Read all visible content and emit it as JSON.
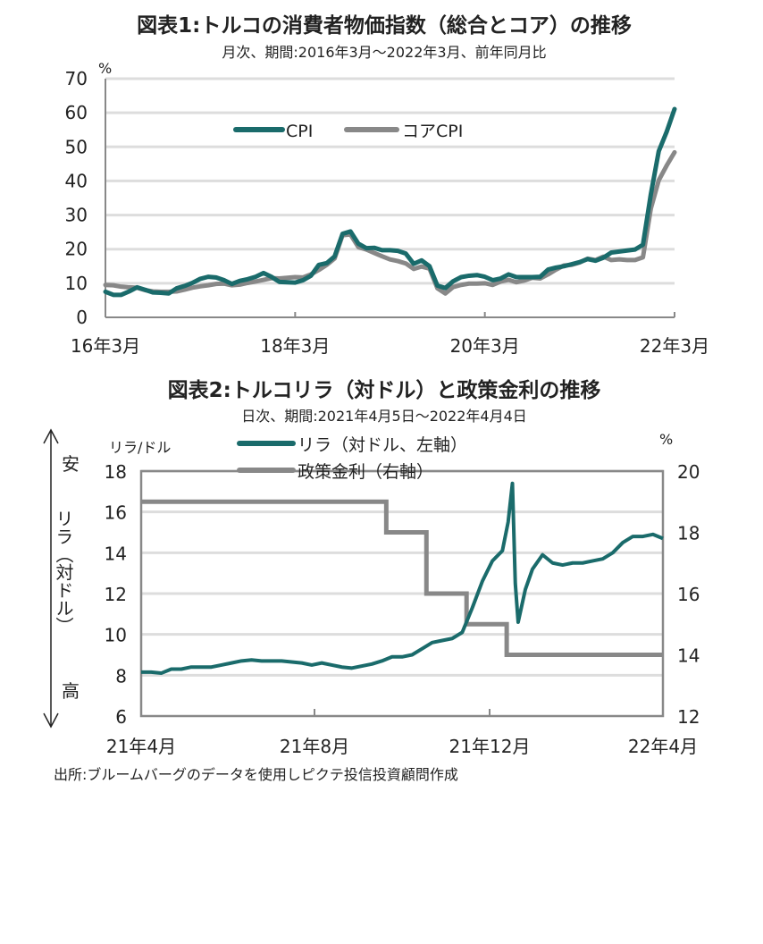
{
  "colors": {
    "teal": "#1a6b6b",
    "gray": "#888888",
    "grid": "#dddddd",
    "axis": "#888888"
  },
  "chart_data": [
    {
      "type": "line",
      "title": "図表1:トルコの消費者物価指数（総合とコア）の推移",
      "subtitle": "月次、期間:2016年3月～2022年3月、前年同月比",
      "unit": "%",
      "ylim": [
        0,
        70
      ],
      "yticks": [
        "0",
        "10",
        "20",
        "30",
        "40",
        "50",
        "60",
        "70"
      ],
      "xticks": [
        "16年3月",
        "18年3月",
        "20年3月",
        "22年3月"
      ],
      "grid": true,
      "legend": "top-center",
      "x_start": "2016-03",
      "x_end": "2022-03",
      "frequency": "monthly",
      "series": [
        {
          "name": "CPI",
          "color": "#1a6b6b",
          "values": [
            7.5,
            6.6,
            6.6,
            7.6,
            8.8,
            8.1,
            7.3,
            7.2,
            7.0,
            8.5,
            9.2,
            10.1,
            11.3,
            11.9,
            11.7,
            10.9,
            9.8,
            10.7,
            11.2,
            11.9,
            13.0,
            11.9,
            10.4,
            10.3,
            10.2,
            10.9,
            12.2,
            15.4,
            15.9,
            17.9,
            24.5,
            25.2,
            21.6,
            20.3,
            20.4,
            19.7,
            19.7,
            19.5,
            18.7,
            15.7,
            16.7,
            15.0,
            9.3,
            8.6,
            10.6,
            11.8,
            12.2,
            12.4,
            11.9,
            10.9,
            11.4,
            12.6,
            11.8,
            11.8,
            11.8,
            11.9,
            14.0,
            14.6,
            15.0,
            15.6,
            16.2,
            17.1,
            16.6,
            17.5,
            19.0,
            19.3,
            19.6,
            19.9,
            21.3,
            36.1,
            48.7,
            54.4,
            61.1
          ]
        },
        {
          "name": "コアCPI",
          "color": "#888888",
          "values": [
            9.5,
            9.4,
            9.0,
            8.8,
            8.7,
            8.0,
            7.6,
            7.5,
            7.5,
            7.6,
            8.1,
            8.7,
            9.1,
            9.4,
            9.8,
            9.9,
            9.4,
            9.6,
            10.1,
            10.5,
            11.0,
            11.5,
            11.4,
            11.6,
            11.8,
            11.7,
            12.6,
            13.9,
            15.4,
            17.3,
            24.1,
            24.3,
            20.6,
            19.9,
            18.9,
            17.9,
            17.0,
            16.5,
            15.8,
            14.2,
            14.9,
            14.3,
            8.5,
            7.0,
            8.9,
            9.5,
            9.9,
            9.9,
            10.0,
            9.5,
            10.5,
            11.0,
            10.3,
            10.8,
            11.6,
            11.4,
            12.6,
            14.0,
            15.2,
            15.4,
            16.1,
            17.2,
            16.8,
            17.8,
            16.8,
            17.0,
            16.8,
            16.8,
            17.6,
            31.9,
            40.2,
            44.5,
            48.4
          ]
        }
      ]
    },
    {
      "type": "line",
      "title": "図表2:トルコリラ（対ドル）と政策金利の推移",
      "subtitle": "日次、期間:2021年4月5日～2022年4月4日",
      "ylabel_left": "リラ/ドル",
      "ylabel_right": "%",
      "ylim_left": [
        6,
        18
      ],
      "ylim_right": [
        12,
        20
      ],
      "yticks_left": [
        "6",
        "8",
        "10",
        "12",
        "14",
        "16",
        "18"
      ],
      "yticks_right": [
        "12",
        "14",
        "16",
        "18",
        "20"
      ],
      "xticks": [
        "21年4月",
        "21年8月",
        "21年12月",
        "22年4月"
      ],
      "x_range": [
        "2021-04-05",
        "2022-04-04"
      ],
      "grid": true,
      "legend": "top-center",
      "side_label": {
        "top": "安",
        "middle": "リラ（対ドル）",
        "bottom": "高"
      },
      "series": [
        {
          "name": "リラ（対ドル、左軸）",
          "color": "#1a6b6b",
          "axis": "left",
          "points": [
            [
              "2021-04-05",
              8.15
            ],
            [
              "2021-04-12",
              8.15
            ],
            [
              "2021-04-19",
              8.1
            ],
            [
              "2021-04-26",
              8.3
            ],
            [
              "2021-05-03",
              8.3
            ],
            [
              "2021-05-10",
              8.4
            ],
            [
              "2021-05-17",
              8.4
            ],
            [
              "2021-05-24",
              8.4
            ],
            [
              "2021-05-31",
              8.5
            ],
            [
              "2021-06-07",
              8.6
            ],
            [
              "2021-06-14",
              8.7
            ],
            [
              "2021-06-21",
              8.75
            ],
            [
              "2021-06-28",
              8.7
            ],
            [
              "2021-07-05",
              8.7
            ],
            [
              "2021-07-12",
              8.7
            ],
            [
              "2021-07-19",
              8.65
            ],
            [
              "2021-07-26",
              8.6
            ],
            [
              "2021-08-02",
              8.5
            ],
            [
              "2021-08-09",
              8.6
            ],
            [
              "2021-08-16",
              8.5
            ],
            [
              "2021-08-23",
              8.4
            ],
            [
              "2021-08-30",
              8.35
            ],
            [
              "2021-09-06",
              8.45
            ],
            [
              "2021-09-13",
              8.55
            ],
            [
              "2021-09-20",
              8.7
            ],
            [
              "2021-09-27",
              8.9
            ],
            [
              "2021-10-04",
              8.9
            ],
            [
              "2021-10-11",
              9.0
            ],
            [
              "2021-10-18",
              9.3
            ],
            [
              "2021-10-25",
              9.6
            ],
            [
              "2021-11-01",
              9.7
            ],
            [
              "2021-11-08",
              9.8
            ],
            [
              "2021-11-15",
              10.1
            ],
            [
              "2021-11-22",
              11.3
            ],
            [
              "2021-11-29",
              12.6
            ],
            [
              "2021-12-06",
              13.6
            ],
            [
              "2021-12-13",
              14.1
            ],
            [
              "2021-12-17",
              15.5
            ],
            [
              "2021-12-20",
              17.4
            ],
            [
              "2021-12-22",
              12.5
            ],
            [
              "2021-12-24",
              10.6
            ],
            [
              "2021-12-29",
              12.2
            ],
            [
              "2022-01-03",
              13.2
            ],
            [
              "2022-01-10",
              13.9
            ],
            [
              "2022-01-17",
              13.5
            ],
            [
              "2022-01-24",
              13.4
            ],
            [
              "2022-01-31",
              13.5
            ],
            [
              "2022-02-07",
              13.5
            ],
            [
              "2022-02-14",
              13.6
            ],
            [
              "2022-02-21",
              13.7
            ],
            [
              "2022-02-28",
              14.0
            ],
            [
              "2022-03-07",
              14.5
            ],
            [
              "2022-03-14",
              14.8
            ],
            [
              "2022-03-21",
              14.8
            ],
            [
              "2022-03-28",
              14.9
            ],
            [
              "2022-04-04",
              14.7
            ]
          ]
        },
        {
          "name": "政策金利（右軸）",
          "color": "#888888",
          "axis": "right",
          "steps": [
            [
              "2021-04-05",
              19
            ],
            [
              "2021-09-23",
              18
            ],
            [
              "2021-10-21",
              16
            ],
            [
              "2021-11-18",
              15
            ],
            [
              "2021-12-16",
              14
            ],
            [
              "2022-04-04",
              14
            ]
          ]
        }
      ]
    }
  ],
  "source": "出所:ブルームバーグのデータを使用しピクテ投信投資顧問作成"
}
